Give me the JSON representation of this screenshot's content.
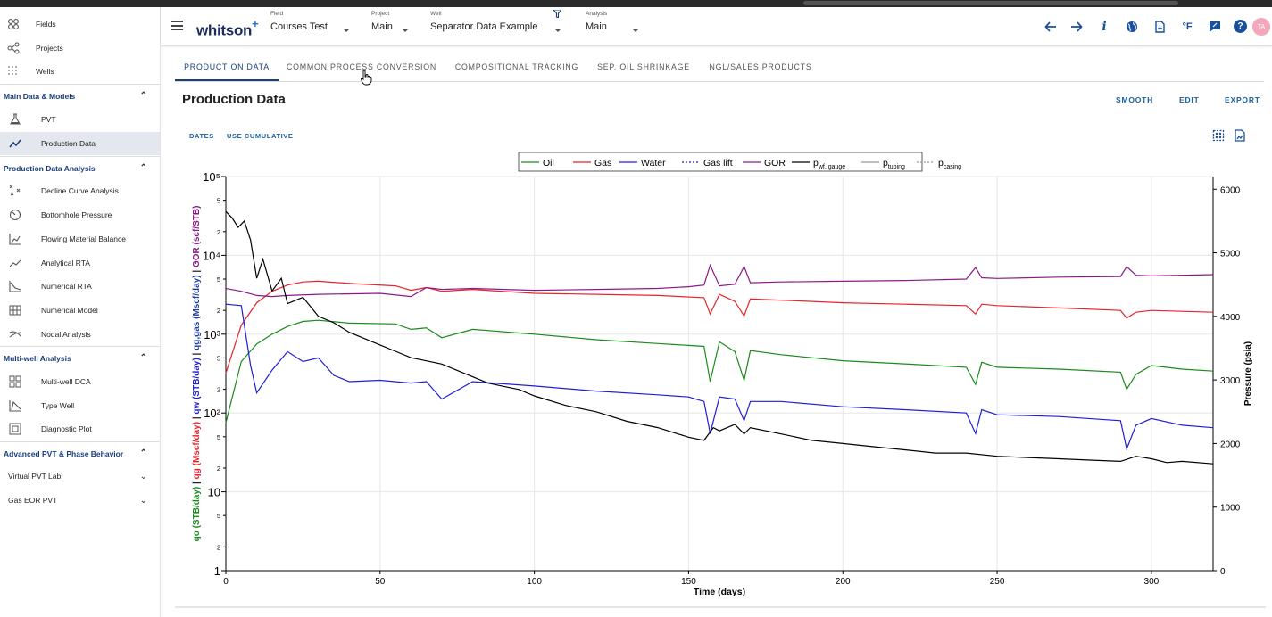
{
  "sidebar": {
    "top_items": [
      {
        "label": "Fields",
        "icon": "fields-icon"
      },
      {
        "label": "Projects",
        "icon": "projects-icon"
      },
      {
        "label": "Wells",
        "icon": "wells-icon"
      }
    ],
    "sections": [
      {
        "title": "Main Data & Models",
        "items": [
          "PVT",
          "Production Data"
        ]
      },
      {
        "title": "Production Data Analysis",
        "items": [
          "Decline Curve Analysis",
          "Bottomhole Pressure",
          "Flowing Material Balance",
          "Analytical RTA",
          "Numerical RTA",
          "Numerical Model",
          "Nodal Analysis"
        ]
      },
      {
        "title": "Multi-well Analysis",
        "items": [
          "Multi-well DCA",
          "Type Well",
          "Diagnostic Plot"
        ]
      },
      {
        "title": "Advanced PVT & Phase Behavior",
        "items": [
          "Virtual PVT Lab",
          "Gas EOR PVT"
        ]
      }
    ],
    "active_item": "Production Data"
  },
  "header": {
    "logo": "whitson",
    "logo_plus": "+",
    "field": {
      "label": "Field",
      "value": "Courses Test"
    },
    "project": {
      "label": "Project",
      "value": "Main"
    },
    "well": {
      "label": "Well",
      "value": "Separator Data Example"
    },
    "analysis": {
      "label": "Analysis",
      "value": "Main"
    },
    "avatar": "TA",
    "icons": [
      "back-arrow-icon",
      "forward-arrow-icon",
      "info-icon",
      "globe-icon",
      "document-download-icon",
      "temperature-unit-icon",
      "feedback-icon",
      "help-icon"
    ],
    "temp_unit": "°F",
    "info_glyph": "i",
    "help_glyph": "?"
  },
  "tabs": [
    {
      "label": "PRODUCTION DATA",
      "active": true
    },
    {
      "label": "COMMON PROCESS CONVERSION",
      "active": false
    },
    {
      "label": "COMPOSITIONAL TRACKING",
      "active": false
    },
    {
      "label": "SEP. OIL SHRINKAGE",
      "active": false
    },
    {
      "label": "NGL/SALES PRODUCTS",
      "active": false
    }
  ],
  "page": {
    "title": "Production Data",
    "actions": [
      "SMOOTH",
      "EDIT",
      "EXPORT"
    ],
    "sub_actions": [
      "DATES",
      "USE CUMULATIVE"
    ]
  },
  "chart_data": {
    "type": "line",
    "xlabel": "Time (days)",
    "y_left_label": {
      "oil": "qo (STB/day)",
      "gas": "qg (Mscf/day)",
      "water": "qw (STB/day)",
      "gaslift": "qg,gas (Mscf/day)",
      "gor": "GOR (scf/STB)"
    },
    "y_right_label": "Pressure (psia)",
    "xlim": [
      0,
      320
    ],
    "x_ticks": [
      0,
      50,
      100,
      150,
      200,
      250,
      300
    ],
    "y_left_scale": "log",
    "y_left_lim": [
      1,
      100000
    ],
    "y_left_ticks": [
      "1",
      "10",
      "10²",
      "10³",
      "10⁴",
      "10⁵"
    ],
    "y_right_lim": [
      0,
      6200
    ],
    "y_right_ticks": [
      0,
      1000,
      2000,
      3000,
      4000,
      5000,
      6000
    ],
    "grid": true,
    "legend_position": "top-center",
    "legend": [
      {
        "name": "Oil",
        "color": "#1a8a1a",
        "style": "solid"
      },
      {
        "name": "Gas",
        "color": "#e8232a",
        "style": "solid"
      },
      {
        "name": "Water",
        "color": "#1f1fd6",
        "style": "solid"
      },
      {
        "name": "Gas lift",
        "color": "#1f1fd6",
        "style": "dotted"
      },
      {
        "name": "GOR",
        "color": "#8a1a8a",
        "style": "solid"
      },
      {
        "name": "pwf, gauge",
        "color": "#000000",
        "style": "solid"
      },
      {
        "name": "ptubing",
        "color": "#9a9a9a",
        "style": "solid"
      },
      {
        "name": "pcasing",
        "color": "#9a9a9a",
        "style": "dotted"
      }
    ],
    "series": [
      {
        "name": "Oil",
        "axis": "left",
        "x": [
          0,
          5,
          10,
          15,
          20,
          25,
          30,
          40,
          55,
          60,
          65,
          70,
          80,
          100,
          120,
          140,
          150,
          155,
          157,
          160,
          165,
          168,
          170,
          180,
          200,
          220,
          240,
          243,
          245,
          250,
          270,
          290,
          292,
          295,
          300,
          310,
          320
        ],
        "y": [
          75,
          450,
          750,
          1000,
          1250,
          1450,
          1500,
          1380,
          1350,
          1150,
          1200,
          900,
          1150,
          1000,
          850,
          760,
          720,
          700,
          250,
          800,
          600,
          260,
          620,
          550,
          460,
          420,
          380,
          230,
          440,
          380,
          360,
          330,
          200,
          310,
          400,
          360,
          340
        ]
      },
      {
        "name": "Gas",
        "axis": "left",
        "x": [
          0,
          5,
          10,
          15,
          20,
          25,
          30,
          40,
          55,
          60,
          65,
          70,
          80,
          100,
          120,
          140,
          155,
          157,
          160,
          165,
          168,
          170,
          180,
          200,
          220,
          240,
          243,
          245,
          250,
          270,
          290,
          292,
          295,
          300,
          310,
          320
        ],
        "y": [
          320,
          1300,
          2500,
          3500,
          4200,
          4600,
          4700,
          4400,
          4100,
          3600,
          3900,
          3500,
          3700,
          3300,
          3200,
          3100,
          2900,
          1800,
          3200,
          2600,
          1700,
          2800,
          2700,
          2500,
          2400,
          2300,
          1800,
          2400,
          2300,
          2150,
          2000,
          1600,
          1900,
          2000,
          1950,
          1900
        ]
      },
      {
        "name": "Water",
        "axis": "left",
        "x": [
          0,
          5,
          8,
          10,
          15,
          20,
          25,
          30,
          35,
          40,
          50,
          60,
          65,
          70,
          80,
          100,
          120,
          140,
          150,
          155,
          157,
          160,
          165,
          168,
          170,
          180,
          200,
          220,
          240,
          243,
          245,
          250,
          270,
          290,
          292,
          295,
          300,
          310,
          320
        ],
        "y": [
          2400,
          2300,
          400,
          180,
          350,
          600,
          450,
          500,
          300,
          250,
          260,
          240,
          250,
          150,
          250,
          220,
          190,
          170,
          160,
          140,
          55,
          160,
          150,
          80,
          140,
          140,
          120,
          110,
          100,
          55,
          110,
          95,
          90,
          80,
          35,
          70,
          85,
          70,
          65
        ]
      },
      {
        "name": "GOR",
        "axis": "left",
        "x": [
          0,
          5,
          10,
          15,
          20,
          30,
          50,
          60,
          65,
          70,
          80,
          100,
          120,
          140,
          150,
          155,
          157,
          160,
          165,
          168,
          170,
          180,
          200,
          220,
          240,
          243,
          245,
          250,
          270,
          290,
          292,
          295,
          300,
          320
        ],
        "y": [
          3800,
          3500,
          3100,
          3000,
          3100,
          3200,
          3300,
          3000,
          3900,
          3700,
          3800,
          3600,
          3700,
          3800,
          4000,
          4200,
          7500,
          4100,
          4300,
          7200,
          4500,
          4600,
          4700,
          4800,
          5000,
          7000,
          5200,
          5100,
          5300,
          5400,
          7200,
          5600,
          5500,
          5700
        ]
      },
      {
        "name": "pwf, gauge",
        "axis": "right",
        "x": [
          0,
          2,
          4,
          6,
          8,
          10,
          12,
          15,
          18,
          20,
          25,
          30,
          35,
          40,
          45,
          50,
          55,
          60,
          65,
          70,
          75,
          80,
          85,
          90,
          95,
          100,
          110,
          120,
          130,
          140,
          150,
          155,
          158,
          160,
          165,
          168,
          170,
          180,
          190,
          200,
          210,
          220,
          230,
          240,
          250,
          260,
          270,
          280,
          290,
          295,
          300,
          305,
          310,
          320
        ],
        "y": [
          5650,
          5550,
          5400,
          5500,
          5200,
          4600,
          4900,
          4400,
          4600,
          4200,
          4300,
          4000,
          3900,
          3750,
          3650,
          3550,
          3450,
          3350,
          3300,
          3250,
          3150,
          3050,
          2950,
          2900,
          2850,
          2750,
          2600,
          2500,
          2350,
          2250,
          2100,
          2050,
          2250,
          2200,
          2300,
          2150,
          2250,
          2150,
          2050,
          2000,
          1950,
          1900,
          1850,
          1850,
          1800,
          1780,
          1760,
          1740,
          1720,
          1800,
          1760,
          1700,
          1720,
          1680
        ]
      }
    ]
  }
}
